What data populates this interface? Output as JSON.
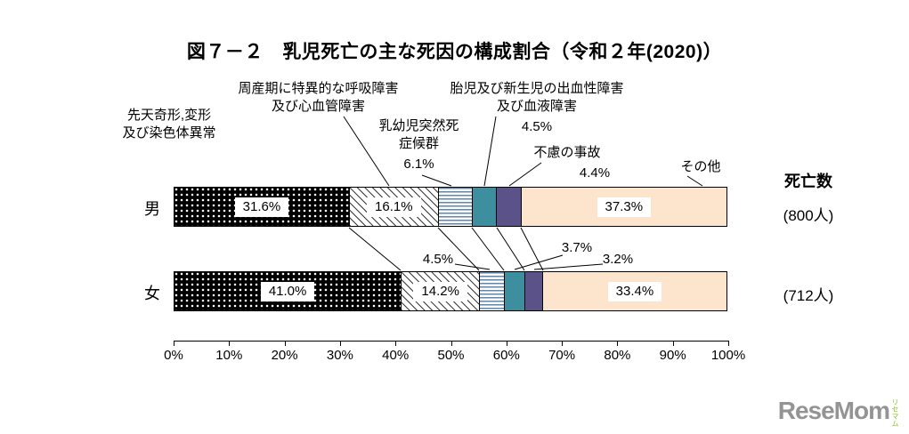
{
  "title": "図７－２　乳児死亡の主な死因の構成割合（令和２年(2020)）",
  "chart_data": {
    "type": "bar",
    "orientation": "horizontal",
    "stacked": true,
    "unit": "%",
    "grid": false,
    "categories": [
      "男",
      "女"
    ],
    "series": [
      {
        "name": "先天奇形,変形及び染色体異常",
        "display_lines": [
          "先天奇形,変形",
          "及び染色体異常"
        ],
        "fill": "dots-black",
        "color": "#000000",
        "values": [
          31.6,
          41.0
        ],
        "value_labels": [
          "31.6%",
          "41.0%"
        ],
        "label_inside": true
      },
      {
        "name": "周産期に特異的な呼吸障害及び心血管障害",
        "display_lines": [
          "周産期に特異的な呼吸障害",
          "及び心血管障害"
        ],
        "fill": "hatch-diagonal",
        "color": "#ffffff",
        "values": [
          16.1,
          14.2
        ],
        "value_labels": [
          "16.1%",
          "14.2%"
        ],
        "label_inside": true
      },
      {
        "name": "乳幼児突然死症候群",
        "display_lines": [
          "乳幼児突然死",
          "症候群"
        ],
        "fill": "stripes-blue",
        "color": "#5e87ad",
        "values": [
          6.1,
          4.5
        ],
        "value_labels": [
          "6.1%",
          "4.5%"
        ],
        "label_inside": false
      },
      {
        "name": "胎児及び新生児の出血性障害及び血液障害",
        "display_lines": [
          "胎児及び新生児の出血性障害",
          "及び血液障害"
        ],
        "fill": "solid-teal",
        "color": "#3d8fa0",
        "values": [
          4.5,
          3.7
        ],
        "value_labels": [
          "4.5%",
          "3.7%"
        ],
        "label_inside": false
      },
      {
        "name": "不慮の事故",
        "display_lines": [
          "不慮の事故"
        ],
        "fill": "solid-purple",
        "color": "#5b5289",
        "values": [
          4.4,
          3.2
        ],
        "value_labels": [
          "4.4%",
          "3.2%"
        ],
        "label_inside": false
      },
      {
        "name": "その他",
        "display_lines": [
          "その他"
        ],
        "fill": "solid-peach",
        "color": "#fce4cd",
        "values": [
          37.3,
          33.4
        ],
        "value_labels": [
          "37.3%",
          "33.4%"
        ],
        "label_inside": true
      }
    ],
    "x_axis": {
      "min": 0,
      "max": 100,
      "tick_labels": [
        "0%",
        "10%",
        "20%",
        "30%",
        "40%",
        "50%",
        "60%",
        "70%",
        "80%",
        "90%",
        "100%"
      ]
    },
    "totals_label": "死亡数",
    "totals": [
      "(800人)",
      "(712人)"
    ]
  },
  "watermark": {
    "text": "ReseMom",
    "vertical_text": "リセマム",
    "text_color": "#949494",
    "accent_color": "#8cc11f"
  }
}
